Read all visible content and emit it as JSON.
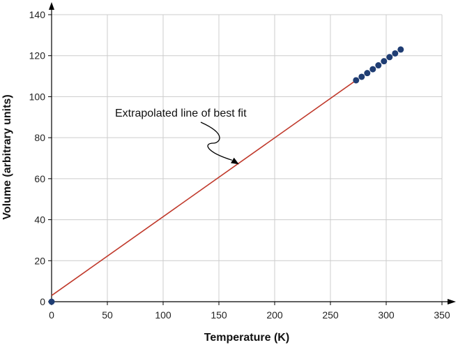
{
  "chart_data": {
    "type": "line",
    "xlabel": "Temperature (K)",
    "ylabel": "Volume (arbitrary units)",
    "xlim": [
      0,
      350
    ],
    "ylim": [
      0,
      140
    ],
    "xticks": [
      0,
      50,
      100,
      150,
      200,
      250,
      300,
      350
    ],
    "yticks": [
      0,
      20,
      40,
      60,
      80,
      100,
      120,
      140
    ],
    "xtick_labels": [
      "0",
      "50",
      "100",
      "150",
      "200",
      "250",
      "300",
      "350"
    ],
    "ytick_labels": [
      "0",
      "20",
      "40",
      "60",
      "80",
      "100",
      "120",
      "140"
    ],
    "grid": true,
    "line": {
      "x": [
        0,
        273
      ],
      "y": [
        3,
        108
      ]
    },
    "points": {
      "x": [
        0,
        273,
        278,
        283,
        288,
        293,
        298,
        303,
        308,
        313
      ],
      "y": [
        0,
        108,
        109.7,
        111.5,
        113.4,
        115.3,
        117.3,
        119.3,
        121.1,
        123
      ]
    },
    "annotation": {
      "text": "Extrapolated line of best fit",
      "points_to": [
        168,
        67
      ]
    },
    "colors": {
      "line": "#c0392b",
      "points": "#1f3d73",
      "grid": "#cccccc",
      "axis": "#000000"
    }
  }
}
